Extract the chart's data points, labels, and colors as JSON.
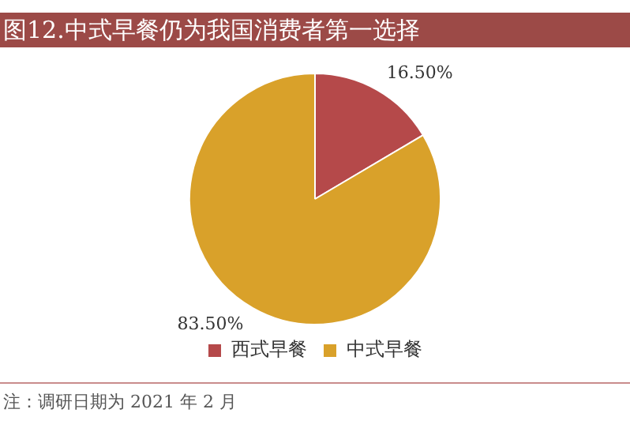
{
  "chart_data": {
    "type": "pie",
    "title": "图12.中式早餐仍为我国消费者第一选择",
    "categories": [
      "西式早餐",
      "中式早餐"
    ],
    "values": [
      16.5,
      83.5
    ],
    "value_labels": [
      "16.50%",
      "83.50%"
    ],
    "colors": [
      "#b5494a",
      "#d9a12a"
    ],
    "legend": "bottom",
    "annotations": [
      "注：调研日期为 2021 年 2 月"
    ]
  }
}
